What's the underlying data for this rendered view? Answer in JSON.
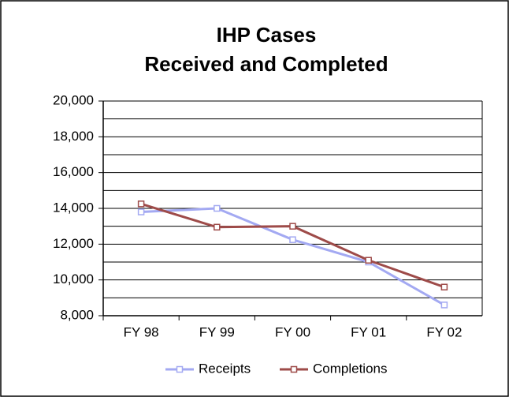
{
  "chart_data": {
    "type": "line",
    "title": [
      "IHP Cases",
      "Received and Completed"
    ],
    "categories": [
      "FY 98",
      "FY 99",
      "FY 00",
      "FY 01",
      "FY 02"
    ],
    "series": [
      {
        "name": "Receipts",
        "color": "#a3a9f2",
        "values": [
          13800,
          14000,
          12250,
          11000,
          8600
        ]
      },
      {
        "name": "Completions",
        "color": "#9e4b49",
        "values": [
          14250,
          12950,
          13000,
          11100,
          9600
        ]
      }
    ],
    "ylim": [
      8000,
      20000
    ],
    "yticks": [
      {
        "value": 8000,
        "label": "8,000"
      },
      {
        "value": 10000,
        "label": "10,000"
      },
      {
        "value": 12000,
        "label": "12,000"
      },
      {
        "value": 14000,
        "label": "14,000"
      },
      {
        "value": 16000,
        "label": "16,000"
      },
      {
        "value": 18000,
        "label": "18,000"
      },
      {
        "value": 20000,
        "label": "20,000"
      }
    ],
    "minor_yticks": [
      9000,
      11000,
      13000,
      15000,
      17000,
      19000
    ],
    "grid": true,
    "legend": "bottom"
  }
}
